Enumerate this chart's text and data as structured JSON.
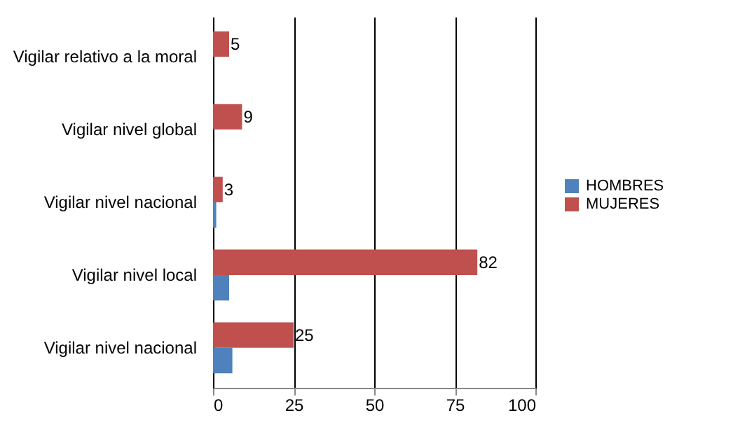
{
  "chart_data": {
    "type": "bar",
    "orientation": "horizontal",
    "categories": [
      "Vigilar relativo a la moral",
      "Vigilar nivel global",
      "Vigilar nivel nacional",
      "Vigilar nivel local",
      "Vigilar nivel nacional"
    ],
    "series": [
      {
        "name": "HOMBRES",
        "color": "#4f81bd",
        "values": [
          0,
          0,
          1,
          5,
          6
        ]
      },
      {
        "name": "MUJERES",
        "color": "#c0504d",
        "values": [
          5,
          9,
          3,
          82,
          25
        ],
        "value_labels": [
          "5",
          "9",
          "3",
          "82",
          "25"
        ]
      }
    ],
    "xlim": [
      0,
      100
    ],
    "xticks": [
      0,
      25,
      50,
      75,
      100
    ],
    "grid": "x",
    "legend": "right"
  }
}
